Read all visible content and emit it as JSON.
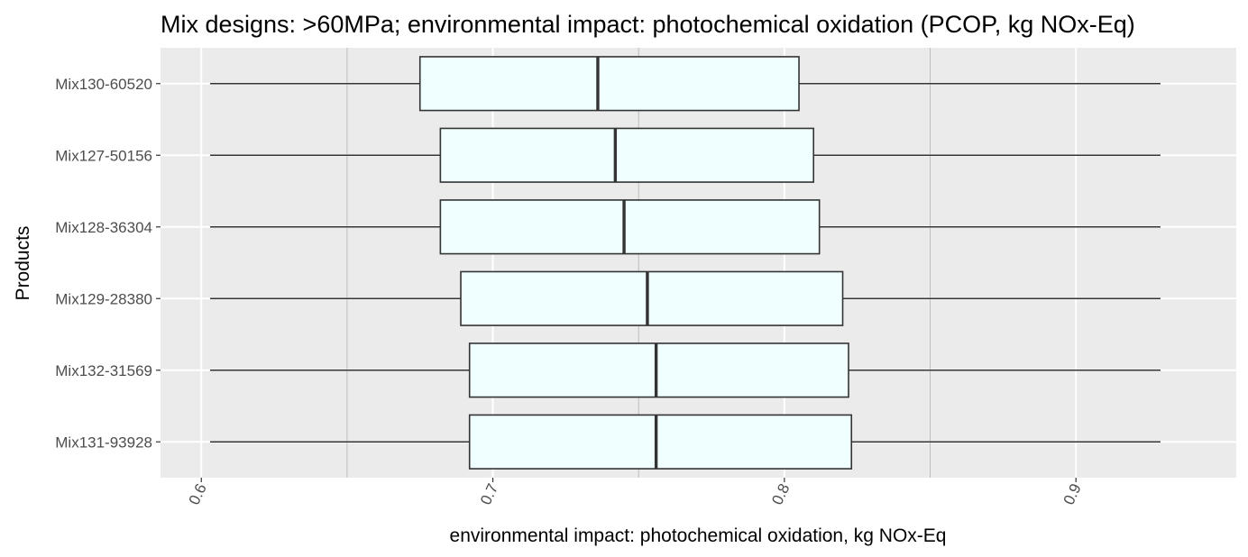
{
  "chart_data": {
    "type": "boxplot",
    "orientation": "horizontal",
    "title": "Mix designs: >60MPa; environmental impact: photochemical oxidation (PCOP, kg NOx-Eq)",
    "xlabel": "environmental impact: photochemical oxidation, kg NOx-Eq",
    "ylabel": "Products",
    "xlim": [
      0.586,
      0.955
    ],
    "x_ticks": [
      0.6,
      0.7,
      0.8,
      0.9
    ],
    "x_tick_labels": [
      "0.6",
      "0.7",
      "0.8",
      "0.9"
    ],
    "x_tick_rotation_deg": -65,
    "grid": true,
    "categories": [
      "Mix130-60520",
      "Mix127-50156",
      "Mix128-36304",
      "Mix129-28380",
      "Mix132-31569",
      "Mix131-93928"
    ],
    "boxes": [
      {
        "label": "Mix130-60520",
        "min": 0.603,
        "q1": 0.675,
        "median": 0.736,
        "q3": 0.805,
        "max": 0.929
      },
      {
        "label": "Mix127-50156",
        "min": 0.603,
        "q1": 0.682,
        "median": 0.742,
        "q3": 0.81,
        "max": 0.929
      },
      {
        "label": "Mix128-36304",
        "min": 0.603,
        "q1": 0.682,
        "median": 0.745,
        "q3": 0.812,
        "max": 0.929
      },
      {
        "label": "Mix129-28380",
        "min": 0.603,
        "q1": 0.689,
        "median": 0.753,
        "q3": 0.82,
        "max": 0.929
      },
      {
        "label": "Mix132-31569",
        "min": 0.603,
        "q1": 0.692,
        "median": 0.756,
        "q3": 0.822,
        "max": 0.929
      },
      {
        "label": "Mix131-93928",
        "min": 0.603,
        "q1": 0.692,
        "median": 0.756,
        "q3": 0.823,
        "max": 0.929
      }
    ],
    "colors": {
      "panel_background": "#ebebeb",
      "grid_major": "#ffffff",
      "grid_minor": "#bdbdbd",
      "box_fill": "#f0ffff",
      "box_stroke": "#333333",
      "tick_label": "#4d4d4d",
      "text": "#000000"
    }
  }
}
